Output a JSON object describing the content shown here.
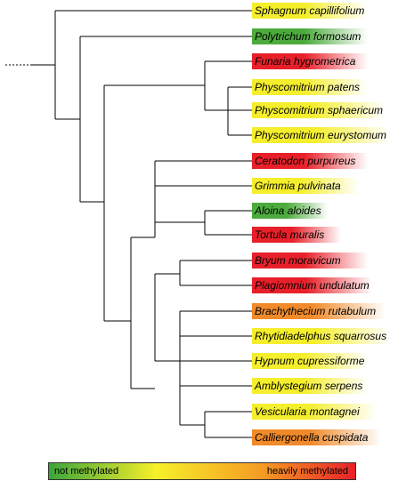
{
  "colors": {
    "not_methylated": "#3aa53a",
    "yellow": "#f7f02a",
    "orange": "#f59a23",
    "red": "#e8202a"
  },
  "taxa": [
    {
      "name": "Sphagnum capillifolium",
      "status": "unmethylated",
      "color": "#f4ee2c"
    },
    {
      "name": "Polytrichum formosum",
      "status": "not methylated",
      "color": "#4cab3c"
    },
    {
      "name": "Funaria hygrometrica",
      "status": "heavily methylated",
      "color": "#e8202a"
    },
    {
      "name": "Physcomitrium patens",
      "status": "unmethylated",
      "color": "#f4ee2c"
    },
    {
      "name": "Physcomitrium sphaericum",
      "status": "unmethylated",
      "color": "#f4ee2c"
    },
    {
      "name": "Physcomitrium eurystomum",
      "status": "unmethylated",
      "color": "#f4ee2c"
    },
    {
      "name": "Ceratodon purpureus",
      "status": "heavily methylated",
      "color": "#e8202a"
    },
    {
      "name": "Grimmia pulvinata",
      "status": "unmethylated",
      "color": "#f4ee2c"
    },
    {
      "name": "Aloina aloides",
      "status": "not methylated",
      "color": "#4cab3c"
    },
    {
      "name": "Tortula muralis",
      "status": "heavily methylated",
      "color": "#e8202a"
    },
    {
      "name": "Bryum moravicum",
      "status": "heavily methylated",
      "color": "#e8202a"
    },
    {
      "name": "Plagiomnium undulatum",
      "status": "heavily methylated",
      "color": "#e8202a"
    },
    {
      "name": "Brachythecium rutabulum",
      "status": "partly methylated",
      "color": "#f08a2a"
    },
    {
      "name": "Rhytidiadelphus squarrosus",
      "status": "unmethylated",
      "color": "#f4ee2c"
    },
    {
      "name": "Hypnum cupressiforme",
      "status": "unmethylated",
      "color": "#f4ee2c"
    },
    {
      "name": "Amblystegium serpens",
      "status": "unmethylated",
      "color": "#f4ee2c"
    },
    {
      "name": "Vesicularia montagnei",
      "status": "unmethylated",
      "color": "#f4ee2c"
    },
    {
      "name": "Calliergonella cuspidata",
      "status": "partly methylated",
      "color": "#f08a2a"
    }
  ],
  "legend": {
    "low_label": "not methylated",
    "high_label": "heavily methylated"
  }
}
